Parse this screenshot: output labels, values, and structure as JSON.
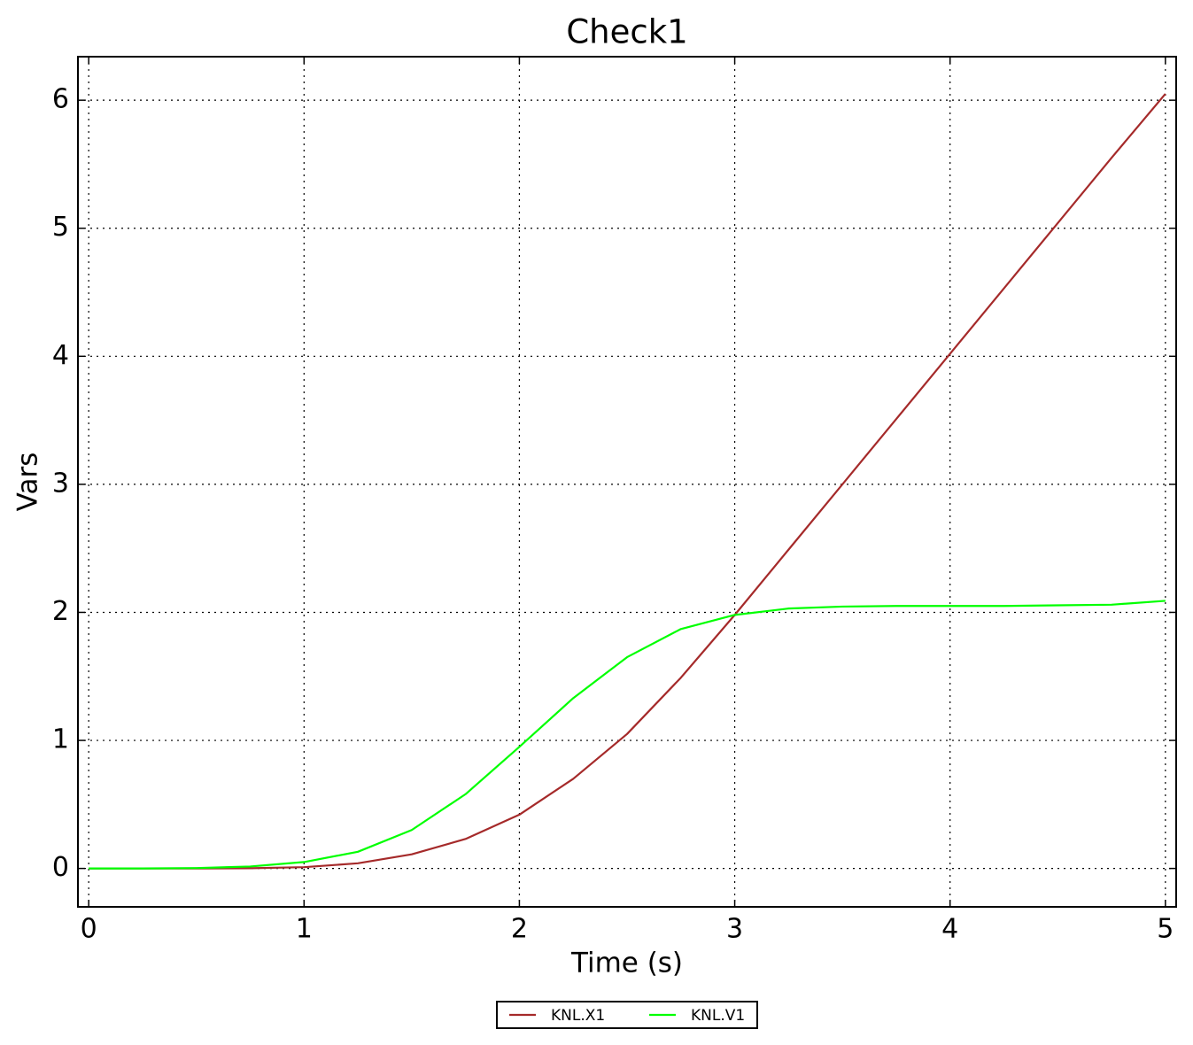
{
  "chart_data": {
    "type": "line",
    "title": "Check1",
    "x_label": "Time (s)",
    "y_label": "Vars",
    "x": [
      0,
      0.25,
      0.5,
      0.75,
      1,
      1.25,
      1.5,
      1.75,
      2,
      2.25,
      2.5,
      2.75,
      3,
      3.25,
      3.5,
      3.75,
      4,
      4.25,
      4.5,
      4.75,
      5
    ],
    "series": [
      {
        "name": "KNL.X1",
        "color": "#a52a2a",
        "values": [
          0,
          0,
          0,
          0.002,
          0.01,
          0.04,
          0.11,
          0.23,
          0.42,
          0.7,
          1.05,
          1.49,
          1.98,
          2.49,
          3.0,
          3.51,
          4.02,
          4.53,
          5.04,
          5.55,
          6.05
        ]
      },
      {
        "name": "KNL.V1",
        "color": "#00ff00",
        "values": [
          0,
          0,
          0.003,
          0.015,
          0.05,
          0.13,
          0.3,
          0.58,
          0.95,
          1.33,
          1.65,
          1.87,
          1.98,
          2.03,
          2.045,
          2.05,
          2.05,
          2.05,
          2.055,
          2.06,
          2.09
        ]
      }
    ],
    "xlim": [
      -0.05,
      5.05
    ],
    "ylim": [
      -0.3,
      6.34
    ],
    "xticks": [
      0,
      1,
      2,
      3,
      4,
      5
    ],
    "yticks": [
      0,
      1,
      2,
      3,
      4,
      5,
      6
    ],
    "grid": true,
    "legend": "bottom"
  }
}
